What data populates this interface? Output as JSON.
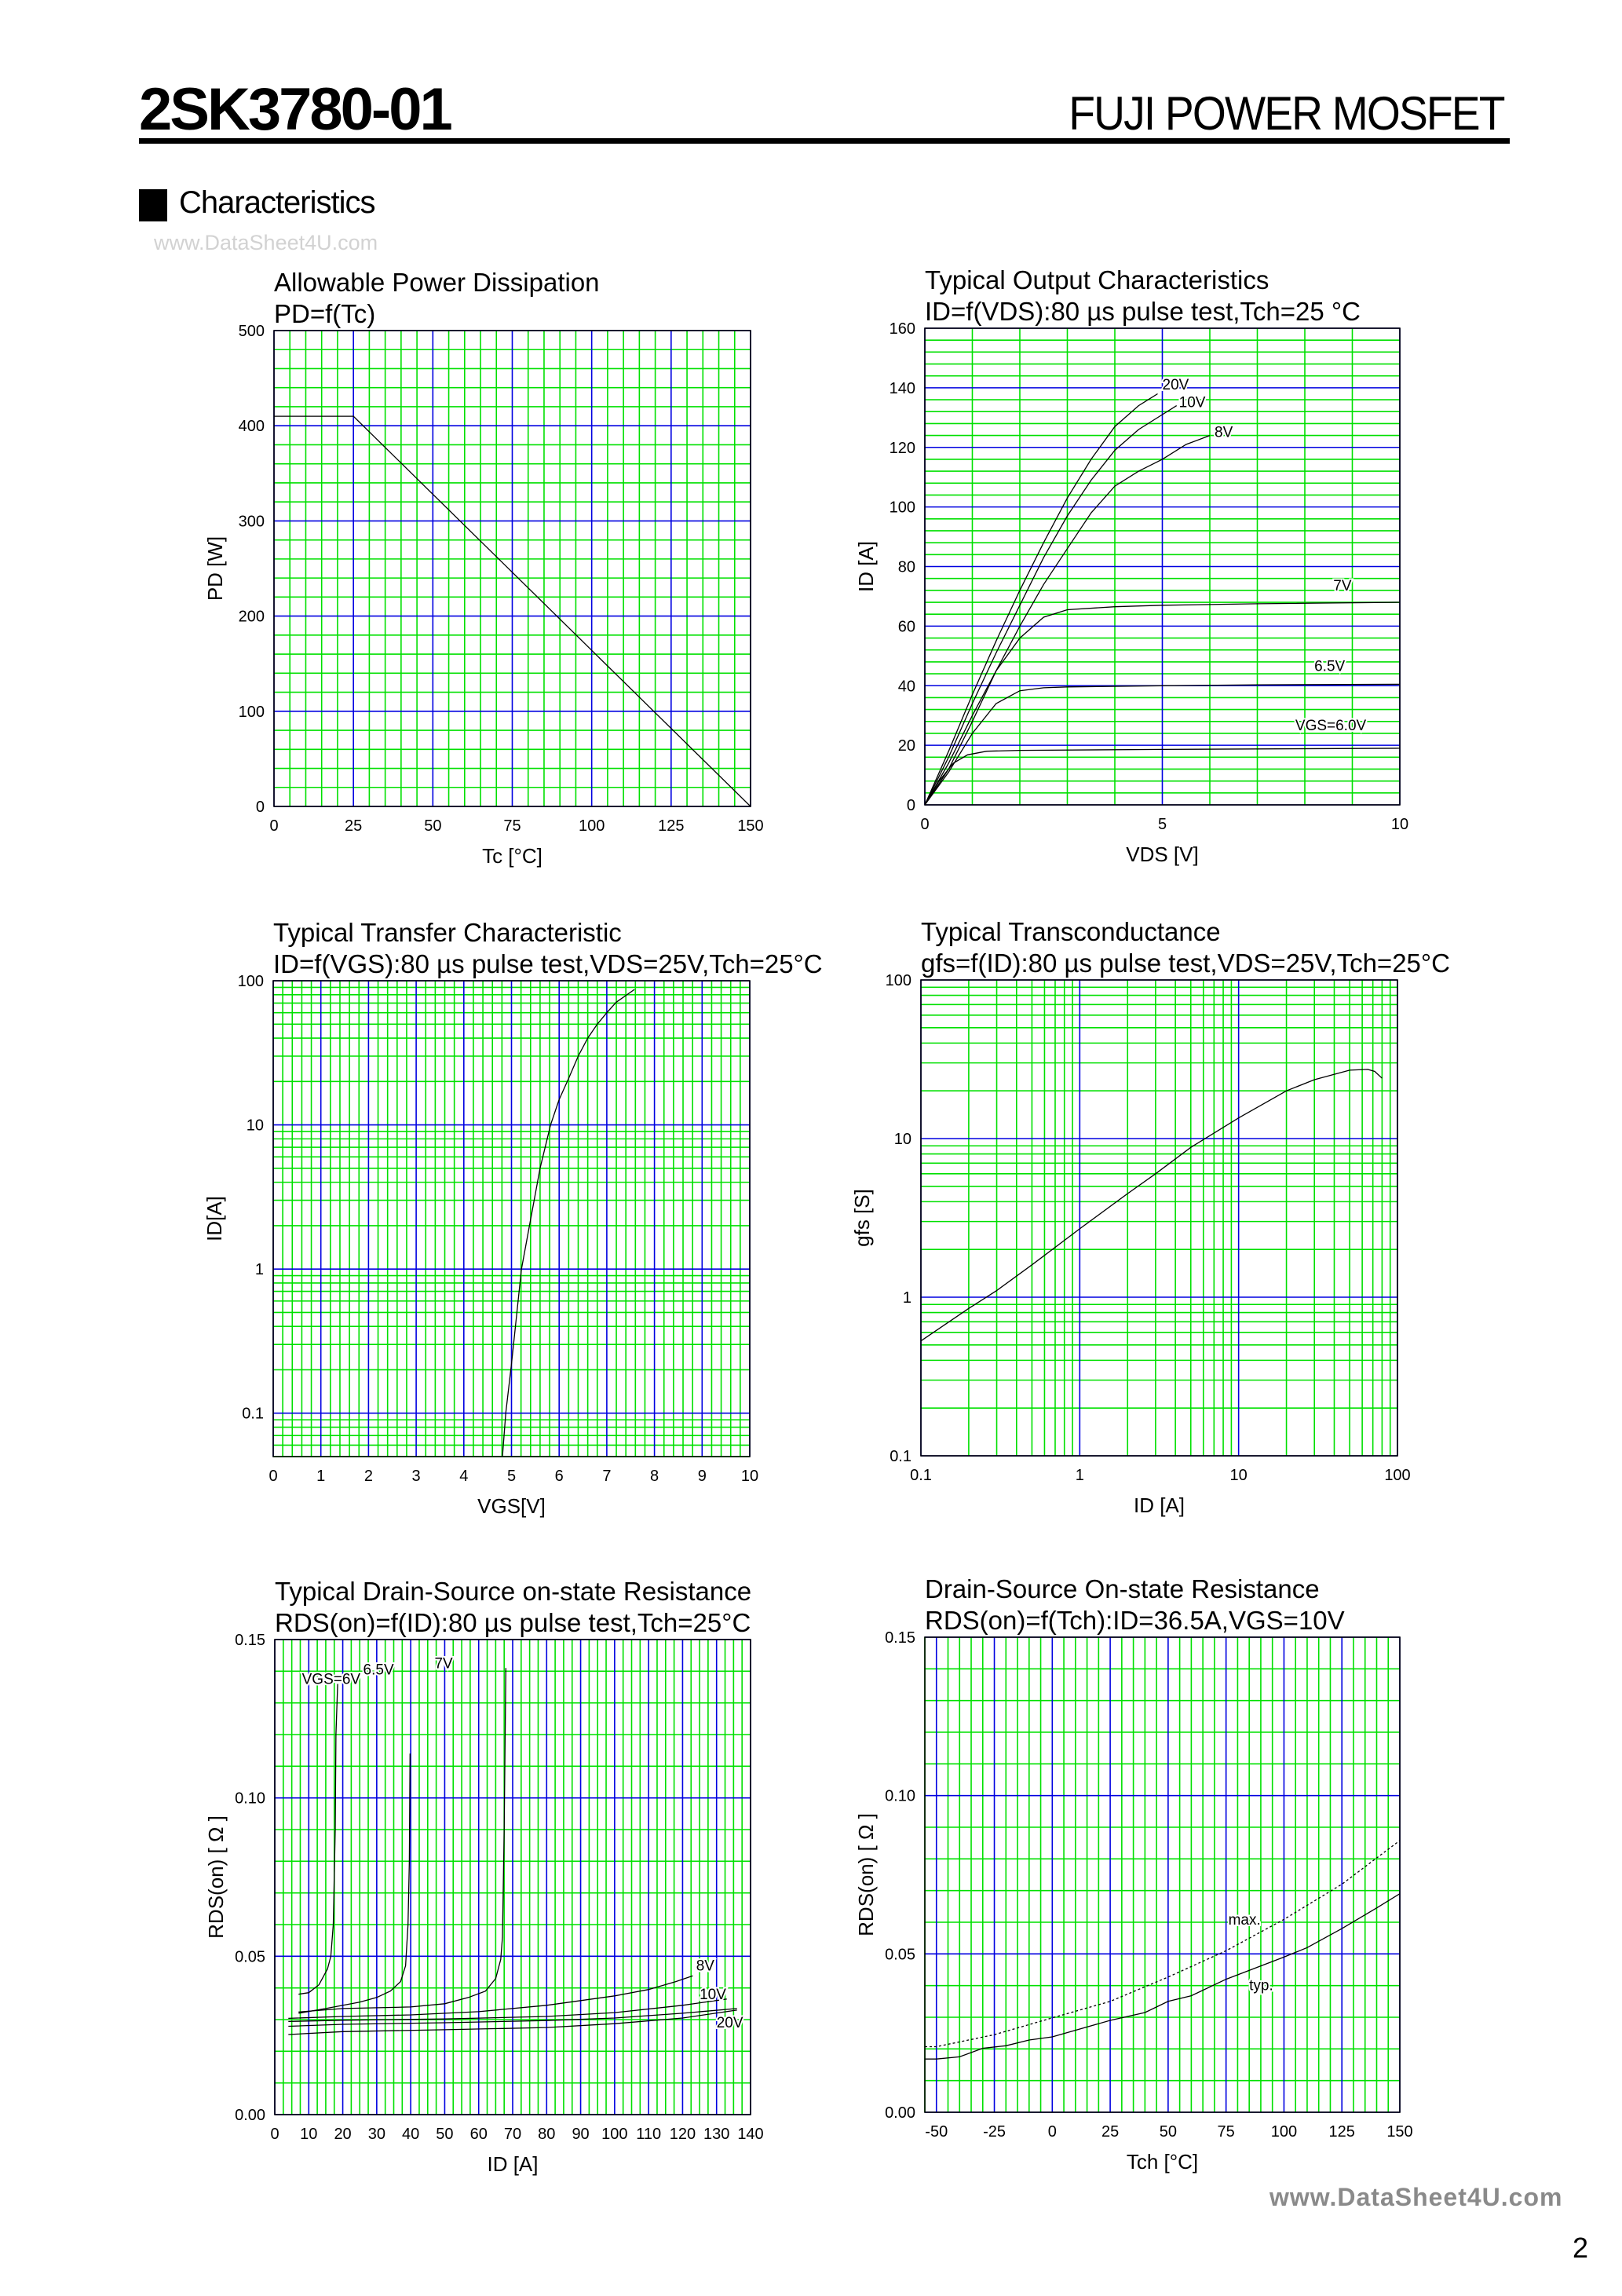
{
  "header": {
    "part_number": "2SK3780-01",
    "brand": "FUJI POWER MOSFET"
  },
  "section": {
    "title": "Characteristics"
  },
  "watermark_top": "www.DataSheet4U.com",
  "watermark_bottom": "www.DataSheet4U.com",
  "page_number": "2",
  "colors": {
    "grid_minor": "#00e000",
    "grid_major": "#0000e0",
    "curve": "#000000"
  },
  "chart_data": [
    {
      "type": "line",
      "title": "Allowable Power Dissipation",
      "subtitle": "PD=f(Tc)",
      "xlabel": "Tc [°C]",
      "ylabel": "PD [W]",
      "xlim": [
        0,
        150
      ],
      "ylim": [
        0,
        500
      ],
      "x_scale": "linear",
      "y_scale": "linear",
      "grid": true,
      "x_ticks": [
        "0",
        "25",
        "50",
        "75",
        "100",
        "125",
        "150"
      ],
      "y_ticks": [
        "0",
        "100",
        "200",
        "300",
        "400",
        "500"
      ],
      "series": [
        {
          "points": [
            [
              0,
              410
            ],
            [
              25,
              410
            ],
            [
              150,
              0
            ]
          ]
        }
      ]
    },
    {
      "type": "line",
      "title": "Typical Output Characteristics",
      "subtitle": "ID=f(VDS):80 µs pulse test,Tch=25 °C",
      "xlabel": "VDS [V]",
      "ylabel": "ID [A]",
      "xlim": [
        0,
        10
      ],
      "ylim": [
        0,
        160
      ],
      "x_scale": "linear",
      "y_scale": "linear",
      "grid": true,
      "x_ticks": [
        "0",
        "5",
        "10"
      ],
      "y_ticks": [
        "0",
        "20",
        "40",
        "60",
        "80",
        "100",
        "120",
        "140",
        "160"
      ],
      "series": [
        {
          "name": "20V",
          "points": [
            [
              0,
              0
            ],
            [
              0.5,
              18
            ],
            [
              1,
              37
            ],
            [
              1.5,
              55
            ],
            [
              2,
              72
            ],
            [
              2.5,
              88
            ],
            [
              3,
              103
            ],
            [
              3.5,
              116
            ],
            [
              4,
              127
            ],
            [
              4.5,
              134
            ],
            [
              4.9,
              138
            ]
          ]
        },
        {
          "name": "10V",
          "points": [
            [
              0,
              0
            ],
            [
              0.5,
              16
            ],
            [
              1,
              34
            ],
            [
              1.5,
              51
            ],
            [
              2,
              67
            ],
            [
              2.5,
              83
            ],
            [
              3,
              97
            ],
            [
              3.5,
              109
            ],
            [
              4,
              119
            ],
            [
              4.5,
              126
            ],
            [
              5,
              131
            ],
            [
              5.3,
              134
            ]
          ]
        },
        {
          "name": "8V",
          "points": [
            [
              0,
              0
            ],
            [
              0.5,
              14
            ],
            [
              1,
              30
            ],
            [
              1.5,
              45
            ],
            [
              2,
              60
            ],
            [
              2.5,
              74
            ],
            [
              3,
              86
            ],
            [
              3.5,
              98
            ],
            [
              4,
              107
            ],
            [
              4.5,
              112
            ],
            [
              5,
              116
            ],
            [
              5.5,
              121
            ],
            [
              6,
              124
            ]
          ]
        },
        {
          "name": "7V",
          "points": [
            [
              0,
              0
            ],
            [
              0.5,
              12
            ],
            [
              1,
              28
            ],
            [
              1.5,
              45
            ],
            [
              2,
              56
            ],
            [
              2.5,
              63
            ],
            [
              3,
              65.5
            ],
            [
              4,
              66.5
            ],
            [
              5,
              67
            ],
            [
              7,
              67.5
            ],
            [
              10,
              68
            ]
          ]
        },
        {
          "name": "6.5V",
          "points": [
            [
              0,
              0
            ],
            [
              0.5,
              11
            ],
            [
              1,
              24
            ],
            [
              1.5,
              34
            ],
            [
              2,
              38.3
            ],
            [
              2.5,
              39.3
            ],
            [
              3,
              39.6
            ],
            [
              5,
              40
            ],
            [
              7,
              40.3
            ],
            [
              10,
              40.5
            ]
          ]
        },
        {
          "name": "VGS=6.0V",
          "points": [
            [
              0,
              0
            ],
            [
              0.3,
              8
            ],
            [
              0.6,
              14
            ],
            [
              0.9,
              16.8
            ],
            [
              1.3,
              18
            ],
            [
              2,
              18.3
            ],
            [
              5,
              18.6
            ],
            [
              10,
              19
            ]
          ]
        }
      ]
    },
    {
      "type": "line",
      "title": "Typical Transfer Characteristic",
      "subtitle": "ID=f(VGS):80 µs pulse test,VDS=25V,Tch=25°C",
      "xlabel": "VGS[V]",
      "ylabel": "ID[A]",
      "xlim": [
        0,
        10
      ],
      "ylim": [
        0.05,
        100
      ],
      "x_scale": "linear",
      "y_scale": "log",
      "grid": true,
      "x_ticks": [
        "0",
        "1",
        "2",
        "3",
        "4",
        "5",
        "6",
        "7",
        "8",
        "9",
        "10"
      ],
      "y_ticks": [
        "0.1",
        "1",
        "10",
        "100"
      ],
      "series": [
        {
          "points": [
            [
              4.81,
              0.05
            ],
            [
              4.88,
              0.1
            ],
            [
              5.0,
              0.22
            ],
            [
              5.21,
              1
            ],
            [
              5.4,
              2.2
            ],
            [
              5.6,
              5
            ],
            [
              5.82,
              10
            ],
            [
              6.0,
              15
            ],
            [
              6.2,
              21
            ],
            [
              6.4,
              30
            ],
            [
              6.6,
              40
            ],
            [
              6.8,
              50
            ],
            [
              7.0,
              60
            ],
            [
              7.2,
              71
            ],
            [
              7.58,
              87
            ]
          ]
        }
      ]
    },
    {
      "type": "line",
      "title": "Typical Transconductance",
      "subtitle": "gfs=f(ID):80 µs pulse test,VDS=25V,Tch=25°C",
      "xlabel": "ID [A]",
      "ylabel": "gfs [S]",
      "xlim": [
        0.1,
        100
      ],
      "ylim": [
        0.1,
        100
      ],
      "x_scale": "log",
      "y_scale": "log",
      "grid": true,
      "x_ticks": [
        "0.1",
        "1",
        "10",
        "100"
      ],
      "y_ticks": [
        "0.1",
        "1",
        "10",
        "100"
      ],
      "series": [
        {
          "points": [
            [
              0.1,
              0.53
            ],
            [
              0.2,
              0.85
            ],
            [
              0.3,
              1.1
            ],
            [
              0.5,
              1.6
            ],
            [
              1,
              2.7
            ],
            [
              2,
              4.5
            ],
            [
              3,
              6
            ],
            [
              5,
              8.8
            ],
            [
              10,
              13.5
            ],
            [
              20,
              20
            ],
            [
              30,
              23.5
            ],
            [
              50,
              27
            ],
            [
              65,
              27.3
            ],
            [
              72,
              26.5
            ],
            [
              80,
              24
            ]
          ]
        }
      ]
    },
    {
      "type": "line",
      "title": "Typical Drain-Source on-state Resistance",
      "subtitle": "RDS(on)=f(ID):80  µs pulse test,Tch=25°C",
      "xlabel": "ID [A]",
      "ylabel": "RDS(on) [  Ω ]",
      "xlim": [
        0,
        140
      ],
      "ylim": [
        0,
        0.15
      ],
      "x_scale": "linear",
      "y_scale": "linear",
      "grid": true,
      "x_ticks": [
        "0",
        "10",
        "20",
        "30",
        "40",
        "50",
        "60",
        "70",
        "80",
        "90",
        "100",
        "110",
        "120",
        "130",
        "140"
      ],
      "y_ticks": [
        "0.00",
        "0.05",
        "0.10",
        "0.15"
      ],
      "series": [
        {
          "name": "VGS=6V",
          "points": [
            [
              7,
              0.038
            ],
            [
              10,
              0.0385
            ],
            [
              13,
              0.041
            ],
            [
              15.5,
              0.046
            ],
            [
              16.5,
              0.05
            ],
            [
              17.2,
              0.06
            ],
            [
              17.8,
              0.09
            ],
            [
              18,
              0.12
            ],
            [
              18.5,
              0.136
            ]
          ]
        },
        {
          "name": "6.5V",
          "points": [
            [
              7,
              0.032
            ],
            [
              15,
              0.0335
            ],
            [
              25,
              0.0355
            ],
            [
              30,
              0.037
            ],
            [
              34,
              0.039
            ],
            [
              37,
              0.042
            ],
            [
              38.5,
              0.047
            ],
            [
              39.2,
              0.06
            ],
            [
              39.6,
              0.08
            ],
            [
              39.8,
              0.114
            ]
          ]
        },
        {
          "name": "7V",
          "points": [
            [
              7,
              0.0324
            ],
            [
              20,
              0.0335
            ],
            [
              40,
              0.034
            ],
            [
              50,
              0.035
            ],
            [
              57,
              0.037
            ],
            [
              62,
              0.039
            ],
            [
              65,
              0.043
            ],
            [
              66.5,
              0.049
            ],
            [
              67,
              0.056
            ],
            [
              67.5,
              0.09
            ],
            [
              68,
              0.141
            ]
          ]
        },
        {
          "name": "8V",
          "points": [
            [
              4,
              0.0304
            ],
            [
              20,
              0.031
            ],
            [
              40,
              0.0315
            ],
            [
              60,
              0.0325
            ],
            [
              80,
              0.0345
            ],
            [
              100,
              0.0375
            ],
            [
              110,
              0.0395
            ],
            [
              118,
              0.042
            ],
            [
              123,
              0.0438
            ]
          ]
        },
        {
          "name": "10V",
          "points": [
            [
              4,
              0.0294
            ],
            [
              20,
              0.0298
            ],
            [
              50,
              0.0302
            ],
            [
              80,
              0.031
            ],
            [
              100,
              0.0322
            ],
            [
              120,
              0.0345
            ],
            [
              133,
              0.0365
            ]
          ]
        },
        {
          "points": [
            [
              4,
              0.0279
            ],
            [
              20,
              0.0285
            ],
            [
              50,
              0.029
            ],
            [
              80,
              0.0297
            ],
            [
              100,
              0.0305
            ],
            [
              120,
              0.032
            ],
            [
              136,
              0.0335
            ]
          ]
        },
        {
          "name": "20V",
          "points": [
            [
              4,
              0.0253
            ],
            [
              20,
              0.0262
            ],
            [
              50,
              0.0268
            ],
            [
              80,
              0.0275
            ],
            [
              100,
              0.0287
            ],
            [
              120,
              0.0305
            ],
            [
              136,
              0.033
            ]
          ]
        }
      ]
    },
    {
      "type": "line",
      "title": "Drain-Source On-state Resistance",
      "subtitle": "RDS(on)=f(Tch):ID=36.5A,VGS=10V",
      "xlabel": "Tch [°C]",
      "ylabel": "RDS(on) [ Ω ]",
      "xlim": [
        -55,
        150
      ],
      "ylim": [
        0,
        0.15
      ],
      "x_scale": "linear",
      "y_scale": "linear",
      "grid": true,
      "x_ticks": [
        "-50",
        "-25",
        "0",
        "25",
        "50",
        "75",
        "100",
        "125",
        "150"
      ],
      "y_ticks": [
        "0.00",
        "0.05",
        "0.10",
        "0.15"
      ],
      "series": [
        {
          "name": "max.",
          "style": "dotted",
          "points": [
            [
              -55,
              0.0207
            ],
            [
              -50,
              0.0207
            ],
            [
              -25,
              0.0245
            ],
            [
              0,
              0.0298
            ],
            [
              25,
              0.035
            ],
            [
              50,
              0.0427
            ],
            [
              75,
              0.051
            ],
            [
              100,
              0.0609
            ],
            [
              125,
              0.072
            ],
            [
              150,
              0.0858
            ]
          ]
        },
        {
          "name": "typ.",
          "style": "solid",
          "points": [
            [
              -55,
              0.0168
            ],
            [
              -50,
              0.0168
            ],
            [
              -40,
              0.0175
            ],
            [
              -30,
              0.0202
            ],
            [
              -20,
              0.021
            ],
            [
              -10,
              0.0228
            ],
            [
              0,
              0.0238
            ],
            [
              25,
              0.029
            ],
            [
              40,
              0.0315
            ],
            [
              50,
              0.035
            ],
            [
              60,
              0.0368
            ],
            [
              75,
              0.042
            ],
            [
              100,
              0.049
            ],
            [
              110,
              0.052
            ],
            [
              125,
              0.058
            ],
            [
              140,
              0.0645
            ],
            [
              150,
              0.069
            ]
          ]
        }
      ]
    }
  ]
}
